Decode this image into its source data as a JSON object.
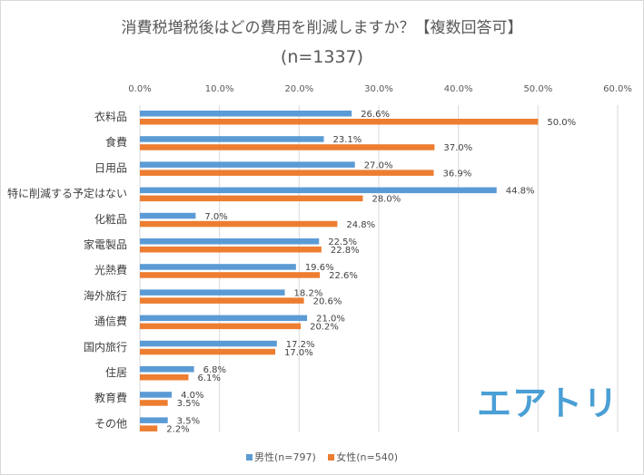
{
  "chart_data": {
    "type": "bar",
    "orientation": "horizontal",
    "title": "消費税増税後はどの費用を削減しますか？【複数回答可】",
    "subtitle": "(n=1337)",
    "xlabel": "",
    "ylabel": "",
    "xlim": [
      0,
      60
    ],
    "ticks": [
      "0.0%",
      "10.0%",
      "20.0%",
      "30.0%",
      "40.0%",
      "50.0%",
      "60.0%"
    ],
    "tick_values": [
      0,
      10,
      20,
      30,
      40,
      50,
      60
    ],
    "grid": true,
    "legend_position": "bottom",
    "categories": [
      "衣料品",
      "食費",
      "日用品",
      "特に削減する予定はない",
      "化粧品",
      "家電製品",
      "光熱費",
      "海外旅行",
      "通信費",
      "国内旅行",
      "住居",
      "教育費",
      "その他"
    ],
    "series": [
      {
        "name": "男性(n=797)",
        "color": "#5b9bd5",
        "values": [
          26.6,
          23.1,
          27.0,
          44.8,
          7.0,
          22.5,
          19.6,
          18.2,
          21.0,
          17.2,
          6.8,
          4.0,
          3.5
        ],
        "labels": [
          "26.6%",
          "23.1%",
          "27.0%",
          "44.8%",
          "7.0%",
          "22.5%",
          "19.6%",
          "18.2%",
          "21.0%",
          "17.2%",
          "6.8%",
          "4.0%",
          "3.5%"
        ]
      },
      {
        "name": "女性(n=540)",
        "color": "#ed7d31",
        "values": [
          50.0,
          37.0,
          36.9,
          28.0,
          24.8,
          22.8,
          22.6,
          20.6,
          20.2,
          17.0,
          6.1,
          3.5,
          2.2
        ],
        "labels": [
          "50.0%",
          "37.0%",
          "36.9%",
          "28.0%",
          "24.8%",
          "22.8%",
          "22.6%",
          "20.6%",
          "20.2%",
          "17.0%",
          "6.1%",
          "3.5%",
          "2.2%"
        ]
      }
    ]
  },
  "logo_text": "エアトリ",
  "colors": {
    "gridline": "#d9d9d9",
    "logo": "#4a9fd5"
  }
}
